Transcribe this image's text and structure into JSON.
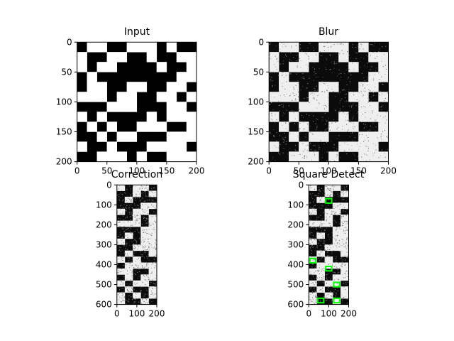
{
  "chart_data": [
    {
      "type": "image",
      "title": "Input",
      "xlim": [
        0,
        200
      ],
      "ylim": [
        200,
        0
      ],
      "xticks": [
        0,
        50,
        100,
        150,
        200
      ],
      "yticks": [
        0,
        50,
        100,
        150,
        200
      ],
      "noise": false,
      "grid": [
        "011001110100",
        "100110010011",
        "101100001001",
        "010000000011",
        "011001100110",
        "111011001101",
        "000111000110",
        "101000010111",
        "010100111001",
        "001011000111",
        "100100011110",
        "001110100111"
      ]
    },
    {
      "type": "image",
      "title": "Blur",
      "xlim": [
        0,
        200
      ],
      "ylim": [
        200,
        0
      ],
      "xticks": [
        0,
        50,
        100,
        150,
        200
      ],
      "yticks": [
        0,
        50,
        100,
        150,
        200
      ],
      "noise": true,
      "grid": [
        "011001110100",
        "100110010011",
        "101100001001",
        "010000000011",
        "011001100110",
        "111011001101",
        "000111000110",
        "101000010111",
        "010100111001",
        "001011000111",
        "100100011110",
        "001110100111"
      ]
    },
    {
      "type": "image",
      "title": "Correction",
      "xlim": [
        0,
        200
      ],
      "ylim": [
        600,
        0
      ],
      "xticks": [
        0,
        100,
        200
      ],
      "yticks": [
        0,
        100,
        200,
        300,
        400,
        500,
        600
      ],
      "noise": true,
      "grid": [
        "10110",
        "00101",
        "01000",
        "00011",
        "10110",
        "00101",
        "11101",
        "00011",
        "01011",
        "10011",
        "00111",
        "01001",
        "10100",
        "01111",
        "11001",
        "01011",
        "10110",
        "01001",
        "10101",
        "10010"
      ]
    },
    {
      "type": "image",
      "title": "Square Detect",
      "xlim": [
        0,
        200
      ],
      "ylim": [
        600,
        0
      ],
      "xticks": [
        0,
        100,
        200
      ],
      "yticks": [
        0,
        100,
        200,
        300,
        400,
        500,
        600
      ],
      "noise": true,
      "highlight_color": "#00ff00",
      "detected_squares": [
        {
          "x": 100,
          "y": 80
        },
        {
          "x": 20,
          "y": 380
        },
        {
          "x": 100,
          "y": 420
        },
        {
          "x": 140,
          "y": 500
        },
        {
          "x": 60,
          "y": 580
        },
        {
          "x": 140,
          "y": 580
        }
      ],
      "grid": [
        "10110",
        "00101",
        "01000",
        "00011",
        "10110",
        "00101",
        "11101",
        "00011",
        "01011",
        "10011",
        "00111",
        "01001",
        "10100",
        "01111",
        "11001",
        "01011",
        "10110",
        "01001",
        "10101",
        "10010"
      ]
    }
  ]
}
